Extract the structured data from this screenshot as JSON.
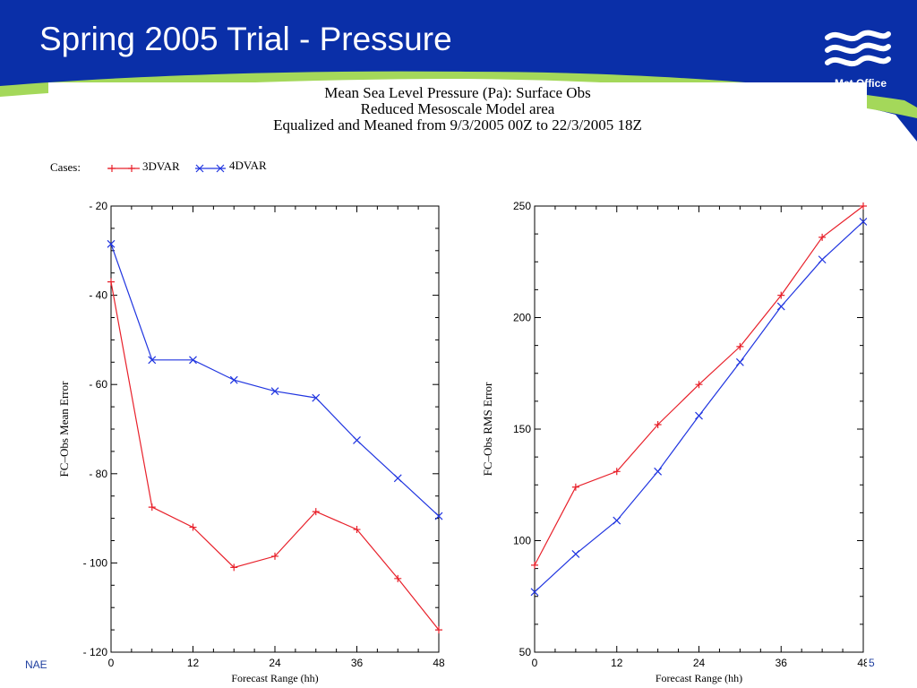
{
  "slide": {
    "title": "Spring 2005 Trial - Pressure",
    "logo_text": "Met Office",
    "footer_left": "NAE",
    "page_number": "5",
    "colors": {
      "banner": "#0a2fa8",
      "accent_band": "#a4d85a",
      "title_text": "#ffffff"
    },
    "logo_icon": "met-office-waves-icon"
  },
  "figure": {
    "title_lines": [
      "Mean Sea Level Pressure (Pa):  Surface Obs",
      "Reduced Mesoscale Model area",
      "Equalized and Meaned from 9/3/2005 00Z to 22/3/2005 18Z"
    ],
    "legend": {
      "label": "Cases:",
      "entries": [
        {
          "name": "3DVAR",
          "color": "#e8202a",
          "marker": "plus"
        },
        {
          "name": "4DVAR",
          "color": "#2035e0",
          "marker": "cross"
        }
      ]
    }
  },
  "chart_data": [
    {
      "type": "line",
      "title": "",
      "xlabel": "Forecast Range (hh)",
      "ylabel": "FC–Obs Mean Error",
      "xlim": [
        0,
        48
      ],
      "ylim": [
        -120,
        -20
      ],
      "xticks": [
        0,
        12,
        24,
        36,
        48
      ],
      "xtick_labels": [
        "0",
        "12",
        "24",
        "36",
        "48"
      ],
      "yticks": [
        -20,
        -40,
        -60,
        -80,
        -100,
        -120
      ],
      "ytick_labels": [
        "- 20",
        "- 40",
        "- 60",
        "- 80",
        "- 100",
        "- 120"
      ],
      "grid": false,
      "legend": "top-left",
      "series": [
        {
          "name": "3DVAR",
          "color": "#e8202a",
          "marker": "plus",
          "x": [
            0,
            6,
            12,
            18,
            24,
            30,
            36,
            42,
            48
          ],
          "y": [
            -37,
            -87.5,
            -92,
            -101,
            -98.5,
            -88.5,
            -92.5,
            -103.5,
            -115
          ]
        },
        {
          "name": "4DVAR",
          "color": "#2035e0",
          "marker": "cross",
          "x": [
            0,
            6,
            12,
            18,
            24,
            30,
            36,
            42,
            48
          ],
          "y": [
            -28.5,
            -54.5,
            -54.5,
            -59,
            -61.5,
            -63,
            -72.5,
            -81,
            -89.5
          ]
        }
      ]
    },
    {
      "type": "line",
      "title": "",
      "xlabel": "Forecast Range (hh)",
      "ylabel": "FC–Obs RMS Error",
      "xlim": [
        0,
        48
      ],
      "ylim": [
        50,
        250
      ],
      "xticks": [
        0,
        12,
        24,
        36,
        48
      ],
      "xtick_labels": [
        "0",
        "12",
        "24",
        "36",
        "48"
      ],
      "yticks": [
        250,
        200,
        150,
        100,
        50
      ],
      "ytick_labels": [
        "250",
        "200",
        "150",
        "100",
        "50"
      ],
      "grid": false,
      "legend": "top-left",
      "series": [
        {
          "name": "3DVAR",
          "color": "#e8202a",
          "marker": "plus",
          "x": [
            0,
            6,
            12,
            18,
            24,
            30,
            36,
            42,
            48
          ],
          "y": [
            89,
            124,
            131,
            152,
            170,
            187,
            210,
            236,
            250
          ]
        },
        {
          "name": "4DVAR",
          "color": "#2035e0",
          "marker": "cross",
          "x": [
            0,
            6,
            12,
            18,
            24,
            30,
            36,
            42,
            48
          ],
          "y": [
            77,
            94,
            109,
            131,
            156,
            180,
            205,
            226,
            243
          ]
        }
      ]
    }
  ]
}
